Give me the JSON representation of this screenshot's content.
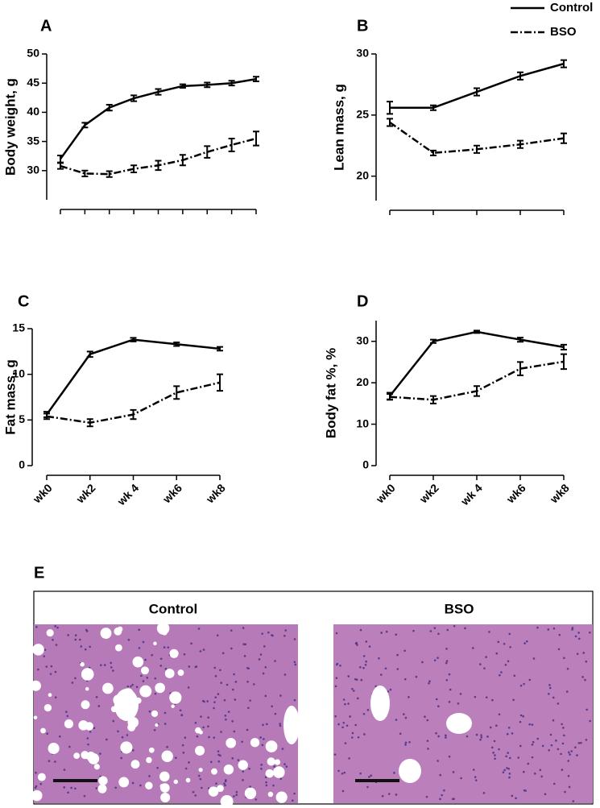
{
  "chart_data": [
    {
      "type": "line",
      "label": "A",
      "y_label": "Body weight, g",
      "categories": [
        null,
        null,
        null,
        null,
        null,
        null,
        null,
        null,
        null
      ],
      "ylim": [
        25,
        50
      ],
      "yticks": [
        30,
        35,
        40,
        45,
        50
      ],
      "series": [
        {
          "name": "Control",
          "color": "#000000",
          "values": [
            32,
            37.8,
            40.8,
            42.4,
            43.5,
            44.5,
            44.7,
            45,
            45.7
          ],
          "errors": [
            0.6,
            0.4,
            0.5,
            0.5,
            0.5,
            0.3,
            0.4,
            0.4,
            0.4
          ]
        },
        {
          "name": "BSO",
          "color": "#000000",
          "values": [
            30.8,
            29.5,
            29.4,
            30.3,
            30.9,
            31.8,
            33.2,
            34.4,
            35.5
          ],
          "errors": [
            0.5,
            0.5,
            0.5,
            0.6,
            0.8,
            0.9,
            1.0,
            1.1,
            1.2
          ]
        }
      ]
    },
    {
      "type": "line",
      "label": "B",
      "y_label": "Lean mass, g",
      "categories": [
        null,
        null,
        null,
        null,
        null
      ],
      "ylim": [
        18,
        30
      ],
      "yticks": [
        20,
        25,
        30
      ],
      "series": [
        {
          "values": [
            25.6,
            25.6,
            26.9,
            28.2,
            29.2
          ],
          "errors": [
            0.5,
            0.2,
            0.3,
            0.3,
            0.3
          ]
        },
        {
          "values": [
            24.4,
            21.9,
            22.2,
            22.6,
            23.1
          ],
          "errors": [
            0.3,
            0.2,
            0.3,
            0.3,
            0.4
          ]
        }
      ]
    },
    {
      "type": "line",
      "label": "C",
      "y_label": "Fat mass, g",
      "categories": [
        "wk0",
        "wk2",
        "wk 4",
        "wk6",
        "wk8"
      ],
      "ylim": [
        0,
        15
      ],
      "yticks": [
        0,
        5,
        10,
        15
      ],
      "series": [
        {
          "values": [
            5.6,
            12.2,
            13.8,
            13.3,
            12.8
          ],
          "errors": [
            0.3,
            0.3,
            0.2,
            0.2,
            0.2
          ]
        },
        {
          "values": [
            5.4,
            4.7,
            5.6,
            8.0,
            9.1
          ],
          "errors": [
            0.3,
            0.4,
            0.5,
            0.7,
            0.9
          ]
        }
      ]
    },
    {
      "type": "line",
      "label": "D",
      "y_label": "Body fat %, %",
      "categories": [
        "wk0",
        "wk2",
        "wk 4",
        "wk6",
        "wk8"
      ],
      "ylim": [
        0,
        35
      ],
      "yticks": [
        0,
        10,
        20,
        30
      ],
      "series": [
        {
          "values": [
            16.8,
            30.0,
            32.3,
            30.4,
            28.6
          ],
          "errors": [
            0.8,
            0.4,
            0.3,
            0.5,
            0.6
          ]
        },
        {
          "values": [
            16.6,
            15.9,
            18.0,
            23.4,
            25.1
          ],
          "errors": [
            0.7,
            0.9,
            1.2,
            1.6,
            1.8
          ]
        }
      ]
    }
  ],
  "panel_e": {
    "label": "E",
    "left_title": "Control",
    "right_title": "BSO"
  }
}
